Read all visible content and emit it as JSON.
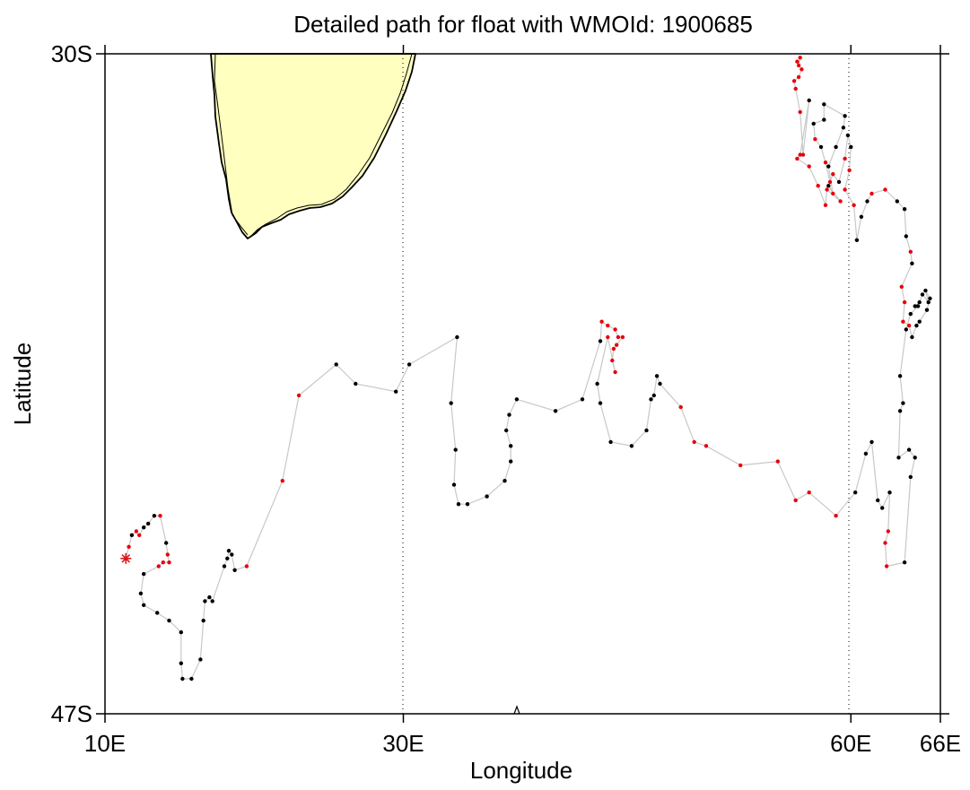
{
  "title": "Detailed path for float with WMOId: 1900685",
  "axes": {
    "xlabel": "Longitude",
    "ylabel": "Latitude",
    "xticks": [
      {
        "value": 10,
        "label": "10E"
      },
      {
        "value": 30,
        "label": "30E"
      },
      {
        "value": 60,
        "label": "60E"
      },
      {
        "value": 66,
        "label": "66E"
      }
    ],
    "yticks": [
      {
        "value": -30,
        "label": "30S"
      },
      {
        "value": -47,
        "label": "47S"
      }
    ],
    "xlim": [
      10,
      66
    ],
    "ylim": [
      -47,
      -30
    ],
    "gridlines_dotted_at_lon": [
      30,
      60
    ]
  },
  "colors": {
    "land_fill": "#ffffc0",
    "path_line": "#c8c8c8",
    "point_black": "#000000",
    "point_red": "#e8000b",
    "start_marker": "#d8181e"
  },
  "chart_data": {
    "type": "scatter",
    "start_marker": {
      "lon": 11.4,
      "lat": -43.0,
      "symbol": "asterisk"
    },
    "track": [
      [
        11.4,
        -43.0,
        "r"
      ],
      [
        11.6,
        -42.7,
        "r"
      ],
      [
        11.8,
        -42.4,
        "b"
      ],
      [
        12.1,
        -42.3,
        "r"
      ],
      [
        12.3,
        -42.4,
        "r"
      ],
      [
        12.6,
        -42.2,
        "b"
      ],
      [
        12.9,
        -42.1,
        "b"
      ],
      [
        13.3,
        -41.9,
        "b"
      ],
      [
        13.7,
        -41.9,
        "r"
      ],
      [
        14.1,
        -42.6,
        "b"
      ],
      [
        14.2,
        -42.9,
        "r"
      ],
      [
        14.3,
        -43.1,
        "r"
      ],
      [
        13.9,
        -43.1,
        "r"
      ],
      [
        13.6,
        -43.2,
        "r"
      ],
      [
        12.6,
        -43.4,
        "b"
      ],
      [
        12.4,
        -43.9,
        "b"
      ],
      [
        12.6,
        -44.2,
        "b"
      ],
      [
        13.5,
        -44.4,
        "b"
      ],
      [
        14.3,
        -44.6,
        "b"
      ],
      [
        15.1,
        -44.9,
        "b"
      ],
      [
        15.1,
        -45.7,
        "b"
      ],
      [
        15.2,
        -46.1,
        "b"
      ],
      [
        15.8,
        -46.1,
        "b"
      ],
      [
        16.4,
        -45.6,
        "b"
      ],
      [
        16.6,
        -44.6,
        "b"
      ],
      [
        16.7,
        -44.1,
        "b"
      ],
      [
        17.0,
        -44.0,
        "b"
      ],
      [
        17.2,
        -44.1,
        "b"
      ],
      [
        18.0,
        -43.2,
        "b"
      ],
      [
        18.2,
        -43.0,
        "b"
      ],
      [
        18.3,
        -42.8,
        "b"
      ],
      [
        18.5,
        -42.9,
        "b"
      ],
      [
        18.7,
        -43.3,
        "b"
      ],
      [
        19.5,
        -43.2,
        "r"
      ],
      [
        21.9,
        -41.0,
        "r"
      ],
      [
        23.0,
        -38.8,
        "r"
      ],
      [
        25.5,
        -38.0,
        "b"
      ],
      [
        26.8,
        -38.5,
        "b"
      ],
      [
        29.5,
        -38.7,
        "b"
      ],
      [
        30.4,
        -38.0,
        "b"
      ],
      [
        33.6,
        -37.3,
        "b"
      ],
      [
        33.2,
        -39.0,
        "b"
      ],
      [
        33.5,
        -40.2,
        "b"
      ],
      [
        33.4,
        -41.1,
        "b"
      ],
      [
        33.7,
        -41.6,
        "b"
      ],
      [
        34.3,
        -41.6,
        "b"
      ],
      [
        35.6,
        -41.4,
        "b"
      ],
      [
        36.8,
        -41.0,
        "b"
      ],
      [
        37.2,
        -40.5,
        "b"
      ],
      [
        37.2,
        -40.1,
        "b"
      ],
      [
        36.9,
        -39.7,
        "b"
      ],
      [
        37.1,
        -39.3,
        "b"
      ],
      [
        37.6,
        -38.9,
        "b"
      ],
      [
        40.2,
        -39.2,
        "b"
      ],
      [
        42.0,
        -38.9,
        "b"
      ],
      [
        43.2,
        -37.4,
        "b"
      ],
      [
        43.3,
        -36.9,
        "r"
      ],
      [
        43.7,
        -37.0,
        "r"
      ],
      [
        44.2,
        -37.1,
        "r"
      ],
      [
        44.4,
        -37.3,
        "r"
      ],
      [
        44.7,
        -37.3,
        "r"
      ],
      [
        44.3,
        -37.5,
        "r"
      ],
      [
        44.1,
        -37.6,
        "r"
      ],
      [
        44.0,
        -37.9,
        "r"
      ],
      [
        44.2,
        -38.2,
        "r"
      ],
      [
        43.7,
        -37.3,
        "r"
      ],
      [
        43.0,
        -38.5,
        "b"
      ],
      [
        43.2,
        -39.0,
        "b"
      ],
      [
        43.9,
        -40.0,
        "b"
      ],
      [
        45.3,
        -40.1,
        "b"
      ],
      [
        46.3,
        -39.7,
        "b"
      ],
      [
        46.6,
        -38.9,
        "b"
      ],
      [
        46.8,
        -38.8,
        "b"
      ],
      [
        47.0,
        -38.3,
        "b"
      ],
      [
        47.2,
        -38.5,
        "b"
      ],
      [
        48.6,
        -39.1,
        "r"
      ],
      [
        49.5,
        -40.0,
        "r"
      ],
      [
        50.3,
        -40.1,
        "r"
      ],
      [
        52.6,
        -40.6,
        "r"
      ],
      [
        55.1,
        -40.5,
        "r"
      ],
      [
        56.3,
        -41.5,
        "r"
      ],
      [
        57.2,
        -41.3,
        "r"
      ],
      [
        59.0,
        -41.9,
        "r"
      ],
      [
        60.3,
        -41.3,
        "b"
      ],
      [
        61.0,
        -40.3,
        "b"
      ],
      [
        61.4,
        -40.0,
        "b"
      ],
      [
        61.8,
        -41.5,
        "b"
      ],
      [
        62.1,
        -41.7,
        "b"
      ],
      [
        62.6,
        -41.3,
        "b"
      ],
      [
        62.5,
        -42.3,
        "r"
      ],
      [
        62.3,
        -42.6,
        "r"
      ],
      [
        62.4,
        -43.2,
        "r"
      ],
      [
        63.6,
        -43.1,
        "b"
      ],
      [
        64.0,
        -40.9,
        "b"
      ],
      [
        64.3,
        -40.4,
        "b"
      ],
      [
        63.9,
        -40.2,
        "b"
      ],
      [
        63.2,
        -40.4,
        "b"
      ],
      [
        63.3,
        -39.2,
        "b"
      ],
      [
        63.5,
        -39.0,
        "b"
      ],
      [
        63.3,
        -38.3,
        "b"
      ],
      [
        63.7,
        -37.1,
        "b"
      ],
      [
        64.0,
        -36.7,
        "b"
      ],
      [
        64.5,
        -36.5,
        "b"
      ],
      [
        64.3,
        -36.5,
        "b"
      ],
      [
        64.6,
        -36.4,
        "b"
      ],
      [
        64.8,
        -36.2,
        "b"
      ],
      [
        65.2,
        -36.4,
        "b"
      ],
      [
        65.0,
        -36.1,
        "b"
      ],
      [
        65.3,
        -36.3,
        "b"
      ],
      [
        65.1,
        -36.6,
        "b"
      ],
      [
        64.6,
        -36.9,
        "b"
      ],
      [
        64.4,
        -37.0,
        "b"
      ],
      [
        64.1,
        -37.3,
        "b"
      ],
      [
        63.9,
        -37.0,
        "r"
      ],
      [
        63.5,
        -36.9,
        "r"
      ],
      [
        63.6,
        -36.4,
        "r"
      ],
      [
        63.4,
        -36.0,
        "r"
      ],
      [
        64.1,
        -35.4,
        "b"
      ],
      [
        64.0,
        -35.1,
        "r"
      ],
      [
        63.7,
        -34.7,
        "b"
      ],
      [
        63.6,
        -34.0,
        "b"
      ],
      [
        63.1,
        -33.8,
        "b"
      ],
      [
        62.3,
        -33.5,
        "r"
      ],
      [
        61.4,
        -33.6,
        "r"
      ],
      [
        61.1,
        -33.8,
        "b"
      ],
      [
        60.7,
        -34.2,
        "b"
      ],
      [
        60.4,
        -34.8,
        "b"
      ],
      [
        60.2,
        -33.9,
        "r"
      ],
      [
        59.6,
        -33.5,
        "r"
      ],
      [
        59.9,
        -33.0,
        "r"
      ],
      [
        60.0,
        -32.4,
        "b"
      ],
      [
        59.8,
        -32.1,
        "b"
      ],
      [
        59.6,
        -32.7,
        "r"
      ],
      [
        59.2,
        -33.3,
        "b"
      ],
      [
        58.8,
        -33.1,
        "r"
      ],
      [
        58.6,
        -33.3,
        "r"
      ],
      [
        58.3,
        -32.8,
        "r"
      ],
      [
        58.0,
        -32.4,
        "b"
      ],
      [
        57.6,
        -32.2,
        "r"
      ],
      [
        57.5,
        -31.8,
        "b"
      ],
      [
        58.2,
        -31.7,
        "b"
      ],
      [
        58.2,
        -31.3,
        "b"
      ],
      [
        59.6,
        -31.6,
        "b"
      ],
      [
        59.5,
        -31.9,
        "b"
      ],
      [
        59.0,
        -32.4,
        "b"
      ],
      [
        58.5,
        -32.9,
        "b"
      ],
      [
        58.8,
        -33.6,
        "r"
      ],
      [
        58.5,
        -33.4,
        "b"
      ],
      [
        59.3,
        -33.8,
        "r"
      ],
      [
        58.4,
        -33.5,
        "r"
      ],
      [
        58.3,
        -33.9,
        "r"
      ],
      [
        57.8,
        -33.4,
        "r"
      ],
      [
        57.2,
        -32.9,
        "r"
      ],
      [
        56.4,
        -32.7,
        "r"
      ],
      [
        56.6,
        -32.6,
        "r"
      ],
      [
        57.2,
        -31.2,
        "b"
      ],
      [
        56.8,
        -32.6,
        "r"
      ],
      [
        56.6,
        -31.5,
        "r"
      ],
      [
        56.3,
        -30.9,
        "r"
      ],
      [
        56.2,
        -30.7,
        "r"
      ],
      [
        56.5,
        -30.6,
        "r"
      ],
      [
        56.7,
        -30.4,
        "r"
      ],
      [
        56.4,
        -30.2,
        "r"
      ],
      [
        56.5,
        -30.3,
        "r"
      ],
      [
        56.6,
        -30.1,
        "r"
      ]
    ],
    "xlabel": "Longitude",
    "ylabel": "Latitude",
    "xlim": [
      10,
      66
    ],
    "ylim": [
      -47,
      -30
    ]
  }
}
